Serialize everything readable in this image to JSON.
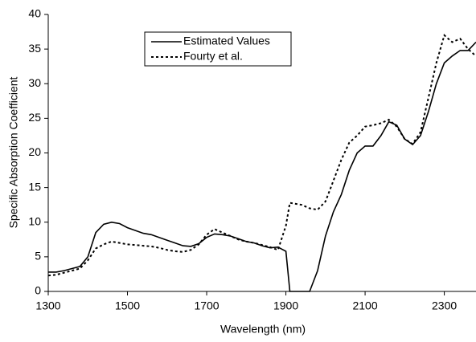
{
  "chart_data": {
    "type": "line",
    "xlabel": "Wavelength (nm)",
    "ylabel": "Specific Absorption Coefficient",
    "x": [
      1300,
      1320,
      1340,
      1360,
      1380,
      1400,
      1420,
      1440,
      1460,
      1480,
      1500,
      1520,
      1540,
      1560,
      1580,
      1600,
      1620,
      1640,
      1660,
      1680,
      1700,
      1720,
      1740,
      1760,
      1780,
      1800,
      1820,
      1840,
      1860,
      1880,
      1900,
      1910,
      1920,
      1940,
      1960,
      1980,
      2000,
      2020,
      2040,
      2060,
      2080,
      2100,
      2120,
      2140,
      2160,
      2180,
      2200,
      2220,
      2240,
      2260,
      2280,
      2300,
      2320,
      2340,
      2360,
      2380
    ],
    "series": [
      {
        "name": "Estimated Values",
        "color": "#000000",
        "style": "solid",
        "values": [
          2.8,
          2.8,
          3.0,
          3.3,
          3.6,
          5.0,
          8.5,
          9.7,
          10.0,
          9.8,
          9.2,
          8.8,
          8.4,
          8.2,
          7.8,
          7.4,
          7.0,
          6.6,
          6.5,
          6.9,
          7.8,
          8.3,
          8.2,
          8.0,
          7.6,
          7.2,
          7.0,
          6.6,
          6.3,
          6.4,
          5.8,
          0,
          0,
          0,
          0,
          3,
          8,
          11.5,
          14,
          17.5,
          20,
          21,
          21,
          22.5,
          24.5,
          24,
          22,
          21.2,
          22.5,
          26,
          30,
          33,
          34,
          34.8,
          34.8,
          36
        ]
      },
      {
        "name": "Fourty et al.",
        "color": "#000000",
        "style": "dotted",
        "values": [
          2.3,
          2.4,
          2.7,
          3.0,
          3.3,
          4.5,
          6.2,
          6.8,
          7.2,
          7.0,
          6.8,
          6.7,
          6.6,
          6.5,
          6.3,
          6.0,
          5.8,
          5.7,
          6.0,
          6.8,
          8.2,
          9.0,
          8.5,
          8.0,
          7.5,
          7.2,
          7.0,
          6.7,
          6.4,
          6.0,
          9.5,
          12.8,
          12.7,
          12.5,
          12.0,
          11.8,
          13,
          16,
          19,
          21.5,
          22.5,
          23.8,
          24,
          24.3,
          24.8,
          23.8,
          22,
          21.3,
          23,
          28,
          33,
          37,
          36,
          36.5,
          35,
          34
        ]
      }
    ],
    "xlim": [
      1300,
      2380
    ],
    "xticks": [
      1300,
      1500,
      1700,
      1900,
      2100,
      2300
    ],
    "ylim": [
      0,
      40
    ],
    "yticks": [
      0,
      5,
      10,
      15,
      20,
      25,
      30,
      35,
      40
    ],
    "legend": "upper-left"
  }
}
